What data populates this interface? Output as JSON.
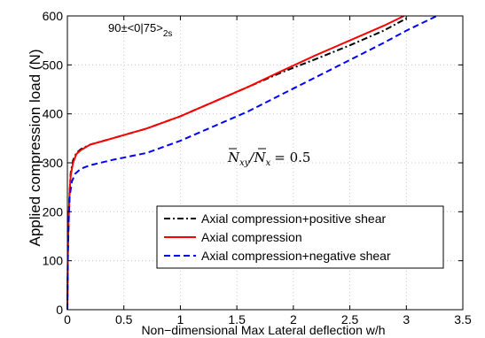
{
  "chart_data": {
    "type": "line",
    "xlabel": "Non−dimensional Max Lateral deflection w/h",
    "ylabel": "Applied compression load (N)",
    "xlim": [
      0,
      3.5
    ],
    "ylim": [
      0,
      600
    ],
    "xticks": [
      "0",
      "0.5",
      "1",
      "1.5",
      "2",
      "2.5",
      "3",
      "3.5"
    ],
    "xtick_values": [
      0,
      0.5,
      1,
      1.5,
      2,
      2.5,
      3,
      3.5
    ],
    "yticks": [
      "0",
      "100",
      "200",
      "300",
      "400",
      "500",
      "600"
    ],
    "ytick_values": [
      0,
      100,
      200,
      300,
      400,
      500,
      600
    ],
    "grid": true,
    "legend_position": "lower-right",
    "layup_annotation": {
      "prefix": "90±<0|75>",
      "subscript": "2s"
    },
    "ratio_annotation": {
      "numerator": "N",
      "numerator_sub": "xy",
      "denominator": "N",
      "denominator_sub": "x",
      "value": "= 0.5"
    },
    "series": [
      {
        "name": "Axial compression+positive shear",
        "color": "#000000",
        "dash": "dashdot",
        "x": [
          0,
          0.005,
          0.01,
          0.02,
          0.03,
          0.05,
          0.08,
          0.12,
          0.2,
          0.4,
          0.7,
          1.0,
          1.3,
          1.6,
          1.9,
          2.2,
          2.5,
          2.8,
          3.0
        ],
        "y": [
          0,
          120,
          180,
          240,
          280,
          305,
          320,
          328,
          337,
          350,
          370,
          395,
          425,
          455,
          485,
          512,
          540,
          570,
          595
        ]
      },
      {
        "name": "Axial compression",
        "color": "#ff0000",
        "dash": "solid",
        "x": [
          0,
          0.005,
          0.01,
          0.02,
          0.03,
          0.05,
          0.08,
          0.12,
          0.2,
          0.4,
          0.7,
          1.0,
          1.3,
          1.6,
          1.9,
          2.2,
          2.5,
          2.8,
          2.98
        ],
        "y": [
          0,
          120,
          180,
          240,
          275,
          300,
          318,
          326,
          337,
          350,
          370,
          395,
          425,
          455,
          488,
          520,
          550,
          580,
          600
        ]
      },
      {
        "name": "Axial compression+negative shear",
        "color": "#0000ff",
        "dash": "dashed",
        "x": [
          0,
          0.005,
          0.01,
          0.02,
          0.04,
          0.07,
          0.12,
          0.2,
          0.4,
          0.7,
          1.0,
          1.3,
          1.6,
          1.9,
          2.2,
          2.5,
          2.8,
          3.0,
          3.27
        ],
        "y": [
          0,
          110,
          170,
          230,
          262,
          278,
          288,
          295,
          306,
          320,
          345,
          375,
          405,
          440,
          475,
          510,
          545,
          570,
          600
        ]
      }
    ]
  }
}
